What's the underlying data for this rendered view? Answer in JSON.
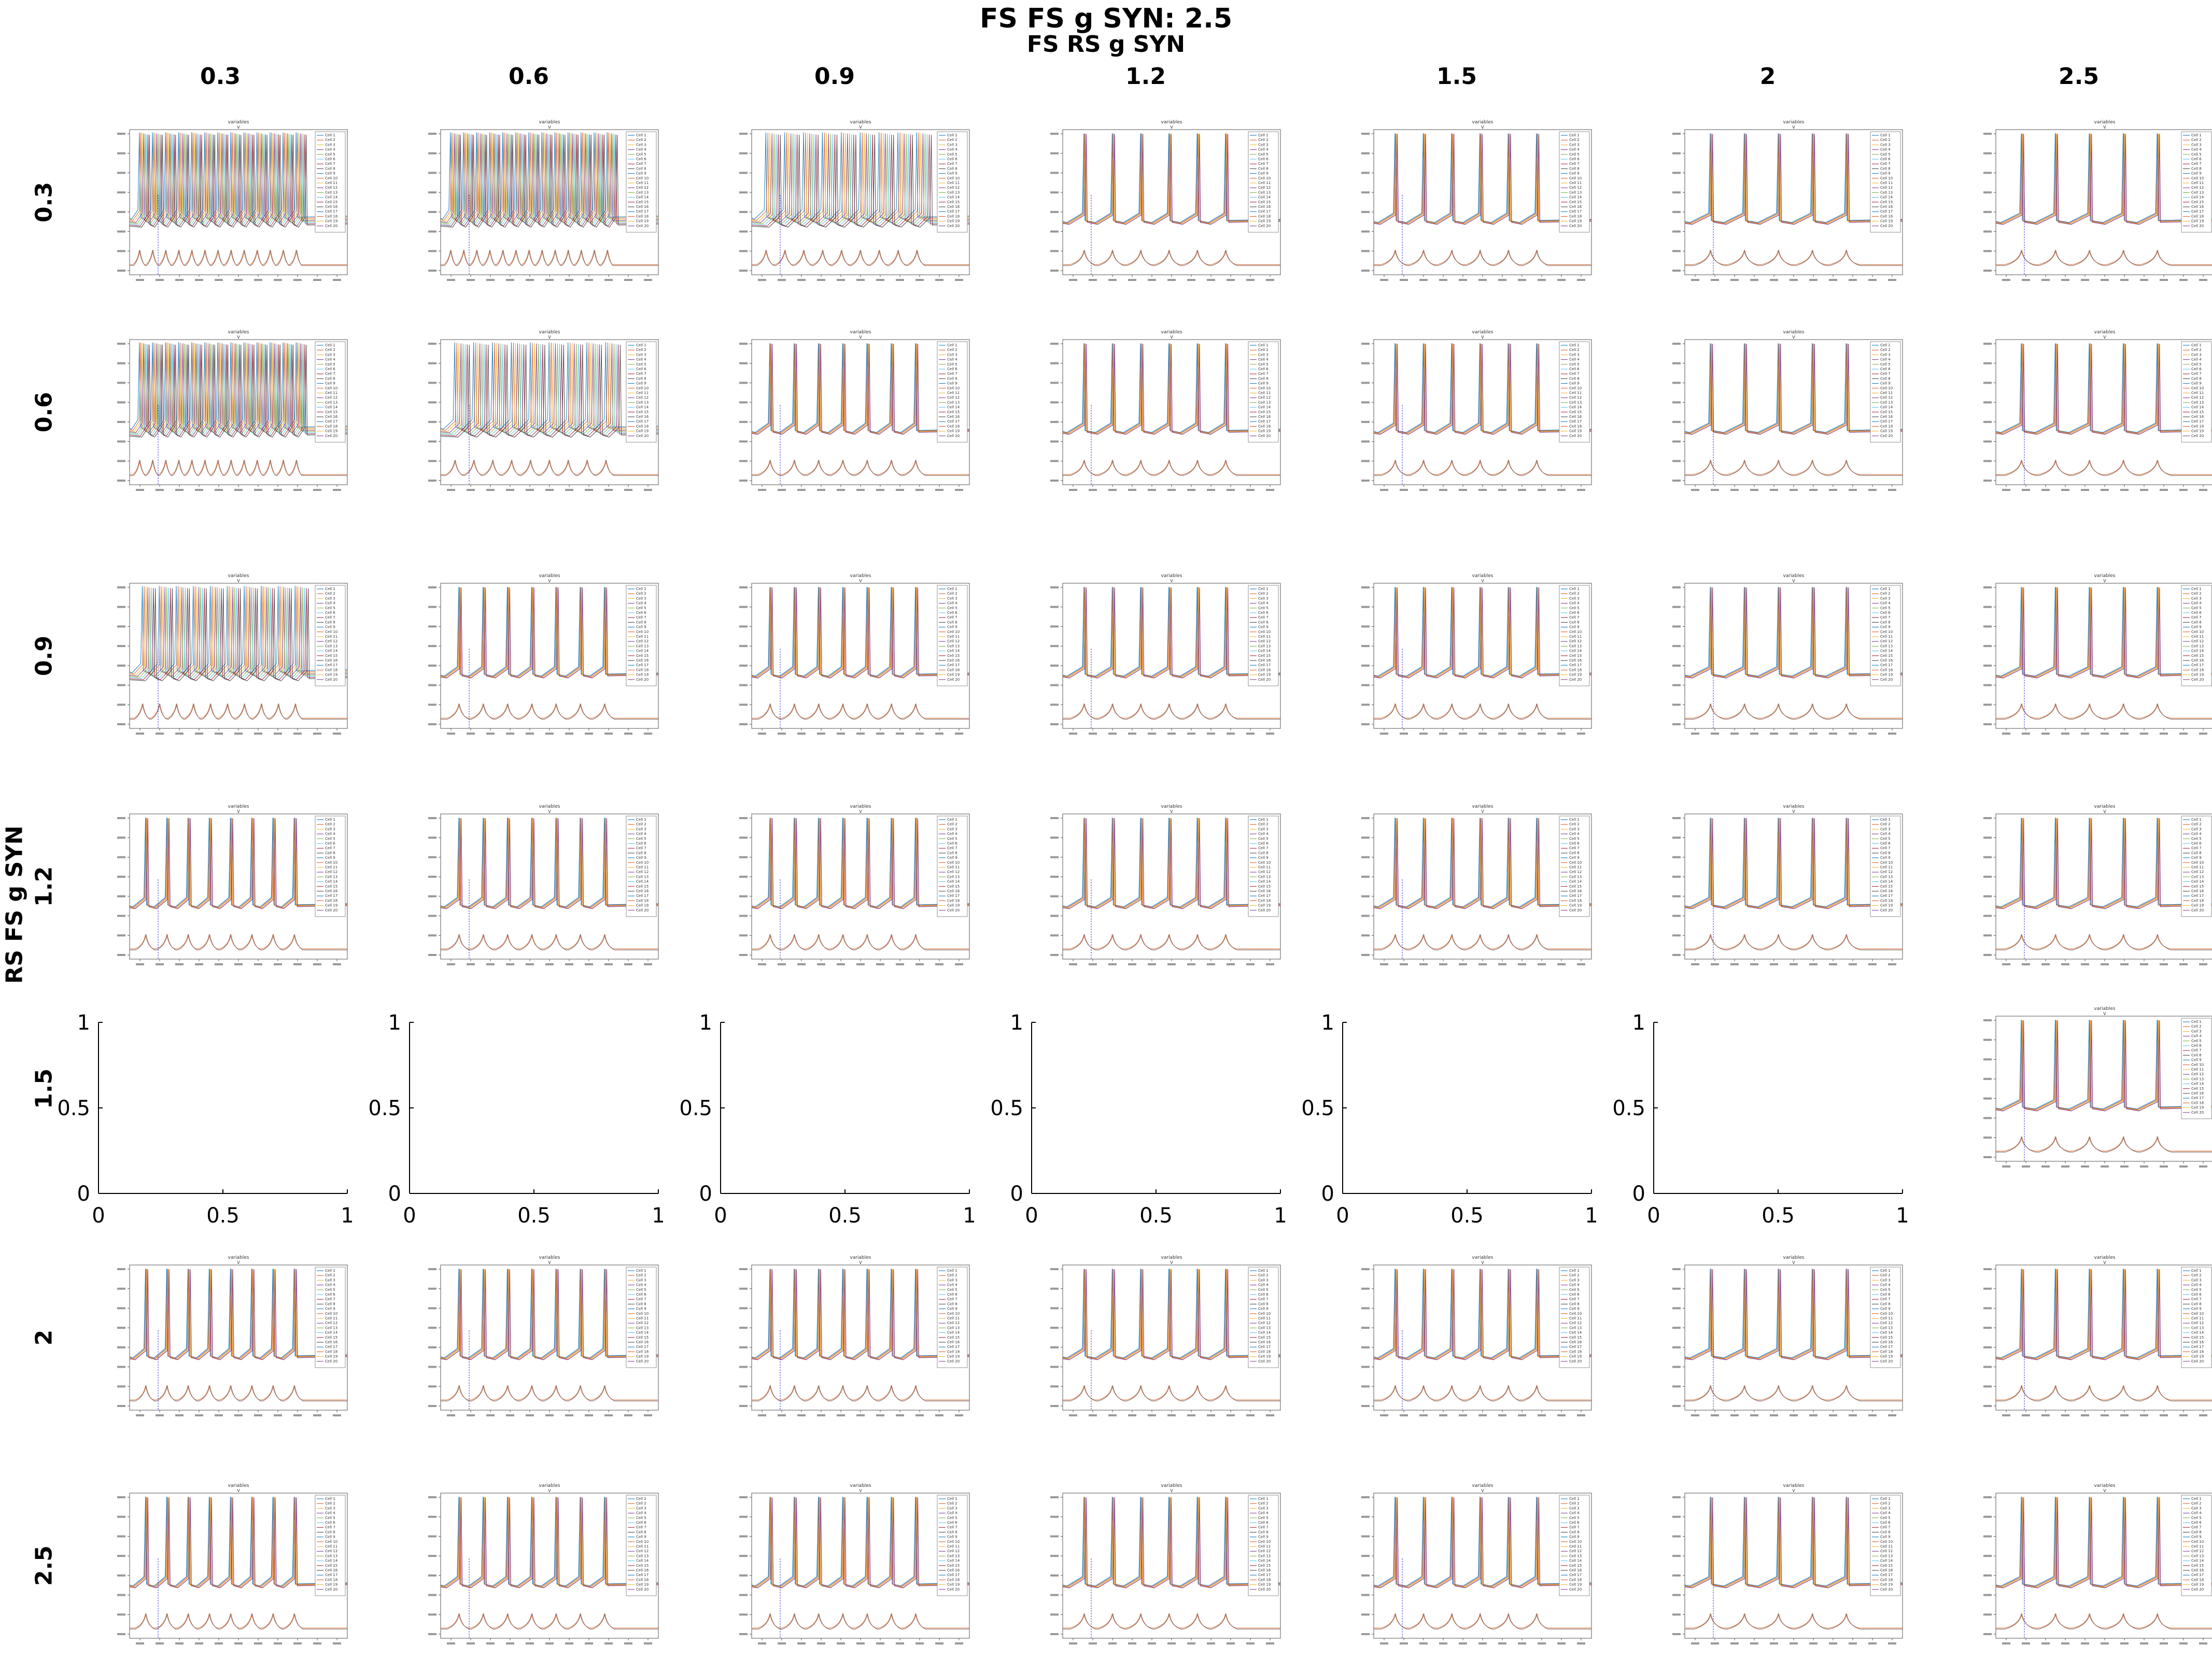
{
  "figure": {
    "title": "FS FS g SYN: 2.5",
    "col_axis_title": "FS RS g SYN",
    "row_axis_title": "RS FS g SYN",
    "col_labels": [
      "0.3",
      "0.6",
      "0.9",
      "1.2",
      "1.5",
      "2",
      "2.5"
    ],
    "row_labels": [
      "0.3",
      "0.6",
      "0.9",
      "1.2",
      "1.5",
      "2",
      "2.5"
    ]
  },
  "chart_data": {
    "type": "line",
    "layout": "7x7 grid of voltage-trace subplots",
    "subplot_title": "variables",
    "subplot_subtitle": "V",
    "legend_entries": [
      "Cell 1",
      "Cell 2",
      "Cell 3",
      "Cell 4",
      "Cell 5",
      "Cell 6",
      "Cell 7",
      "Cell 8",
      "Cell 9",
      "Cell 10",
      "Cell 11",
      "Cell 12",
      "Cell 13",
      "Cell 14",
      "Cell 15",
      "Cell 16",
      "Cell 17",
      "Cell 18",
      "Cell 19",
      "Cell 20"
    ],
    "legend_position": "top-right",
    "spike_counts": [
      [
        13,
        13,
        9,
        6,
        6,
        5,
        5
      ],
      [
        13,
        9,
        7,
        6,
        6,
        5,
        5
      ],
      [
        10,
        7,
        7,
        6,
        6,
        5,
        5
      ],
      [
        8,
        7,
        7,
        6,
        6,
        5,
        5
      ],
      [
        0,
        0,
        0,
        0,
        0,
        0,
        5
      ],
      [
        8,
        7,
        7,
        6,
        6,
        5,
        5
      ],
      [
        8,
        7,
        7,
        6,
        6,
        5,
        5
      ]
    ],
    "empty_subplots": {
      "row": "1.5",
      "cols": [
        "0.3",
        "0.6",
        "0.9",
        "1.2",
        "1.5",
        "2"
      ],
      "xlim": [
        0,
        1
      ],
      "ylim": [
        0,
        1
      ],
      "xticks": [
        "0",
        "0.5",
        "1"
      ],
      "yticks": [
        "0",
        "0.5",
        "1"
      ]
    },
    "colors": {
      "traces": [
        "#0072BD",
        "#D95319",
        "#EDB120",
        "#7E2F8E",
        "#77AC30",
        "#4DBEEE",
        "#A2142F",
        "#3a3a3a"
      ],
      "lower_trace": "#D9763A",
      "marker_line": "#3b3bd8"
    }
  }
}
